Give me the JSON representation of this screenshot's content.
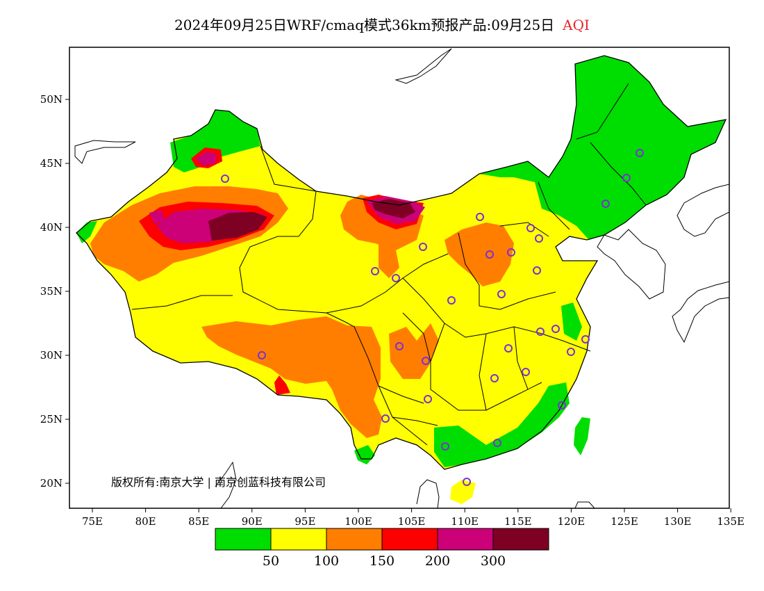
{
  "title": {
    "main": "2024年09月25日WRF/cmaq模式36km预报产品:09月25日",
    "variable": "AQI"
  },
  "copyright": "版权所有:南京大学 | 南京创蓝科技有限公司",
  "axes": {
    "x_ticks": [
      "75E",
      "80E",
      "85E",
      "90E",
      "95E",
      "100E",
      "105E",
      "110E",
      "115E",
      "120E",
      "125E",
      "130E",
      "135E"
    ],
    "y_ticks": [
      "50N",
      "45N",
      "40N",
      "35N",
      "30N",
      "25N",
      "20N"
    ]
  },
  "legend": {
    "colors": [
      "#00dd00",
      "#ffff00",
      "#ff7e00",
      "#ff0000",
      "#cc0077",
      "#7e0023"
    ],
    "labels": [
      "50",
      "100",
      "150",
      "200",
      "300"
    ]
  },
  "colors": {
    "good": "#00dd00",
    "moderate": "#ffff00",
    "sensitive": "#ff7e00",
    "unhealthy": "#ff0000",
    "very_unhealthy": "#cc0077",
    "hazardous": "#7e0023",
    "station_marker": "#7b2fd6"
  }
}
